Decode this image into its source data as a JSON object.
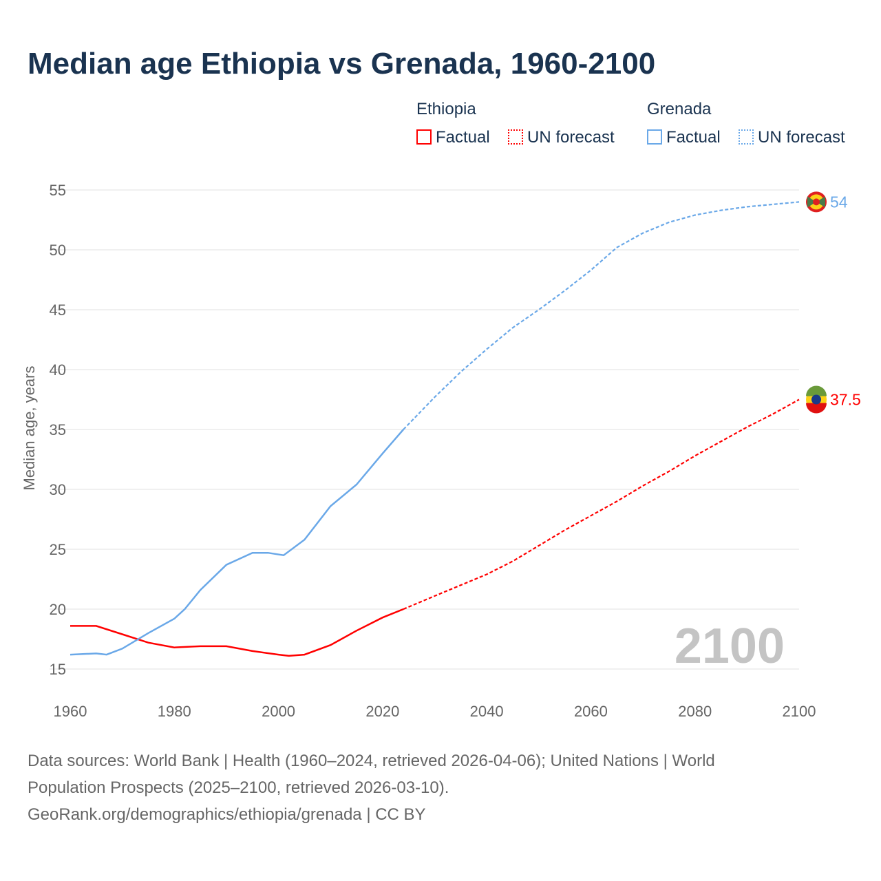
{
  "title": "Median age Ethiopia vs Grenada, 1960-2100",
  "legend": {
    "ethiopia": "Ethiopia",
    "grenada": "Grenada",
    "factual": "Factual",
    "forecast": "UN forecast"
  },
  "year_watermark": "2100",
  "source": {
    "line1": "Data sources: World Bank | Health (1960–2024, retrieved 2026-04-06); United Nations | World",
    "line2": "Population Prospects (2025–2100, retrieved 2026-03-10).",
    "line3": "GeoRank.org/demographics/ethiopia/grenada | CC BY"
  },
  "chart_data": {
    "type": "line",
    "title": "Median age Ethiopia vs Grenada, 1960-2100",
    "xlabel": "",
    "ylabel": "Median age, years",
    "xlim": [
      1960,
      2100
    ],
    "ylim": [
      15,
      55
    ],
    "xticks": [
      1960,
      1980,
      2000,
      2020,
      2040,
      2060,
      2080,
      2100
    ],
    "yticks": [
      15,
      20,
      25,
      30,
      35,
      40,
      45,
      50,
      55
    ],
    "forecast_start": 2024,
    "series": [
      {
        "name": "Ethiopia",
        "color": "#ff0000",
        "end_label": "37.5",
        "x": [
          1960,
          1965,
          1970,
          1975,
          1980,
          1985,
          1990,
          1995,
          2000,
          2002,
          2005,
          2010,
          2015,
          2020,
          2024,
          2030,
          2035,
          2040,
          2045,
          2050,
          2055,
          2060,
          2065,
          2070,
          2075,
          2080,
          2085,
          2090,
          2095,
          2100
        ],
        "y": [
          18.6,
          18.6,
          17.9,
          17.2,
          16.8,
          16.9,
          16.9,
          16.5,
          16.2,
          16.1,
          16.2,
          17.0,
          18.2,
          19.3,
          20.0,
          21.1,
          22.0,
          22.9,
          24.0,
          25.3,
          26.6,
          27.8,
          29.0,
          30.3,
          31.5,
          32.8,
          34.0,
          35.2,
          36.3,
          37.5
        ]
      },
      {
        "name": "Grenada",
        "color": "#6aa8e8",
        "end_label": "54",
        "x": [
          1960,
          1965,
          1967,
          1970,
          1975,
          1980,
          1982,
          1985,
          1990,
          1995,
          1998,
          2001,
          2005,
          2010,
          2015,
          2020,
          2024,
          2030,
          2035,
          2040,
          2045,
          2050,
          2055,
          2060,
          2065,
          2070,
          2075,
          2080,
          2085,
          2090,
          2095,
          2100
        ],
        "y": [
          16.2,
          16.3,
          16.2,
          16.7,
          18.0,
          19.2,
          20.0,
          21.6,
          23.7,
          24.7,
          24.7,
          24.5,
          25.8,
          28.6,
          30.4,
          33.0,
          35.0,
          37.7,
          39.8,
          41.7,
          43.5,
          45.0,
          46.6,
          48.3,
          50.2,
          51.4,
          52.3,
          52.9,
          53.3,
          53.6,
          53.8,
          54.0
        ]
      }
    ]
  }
}
